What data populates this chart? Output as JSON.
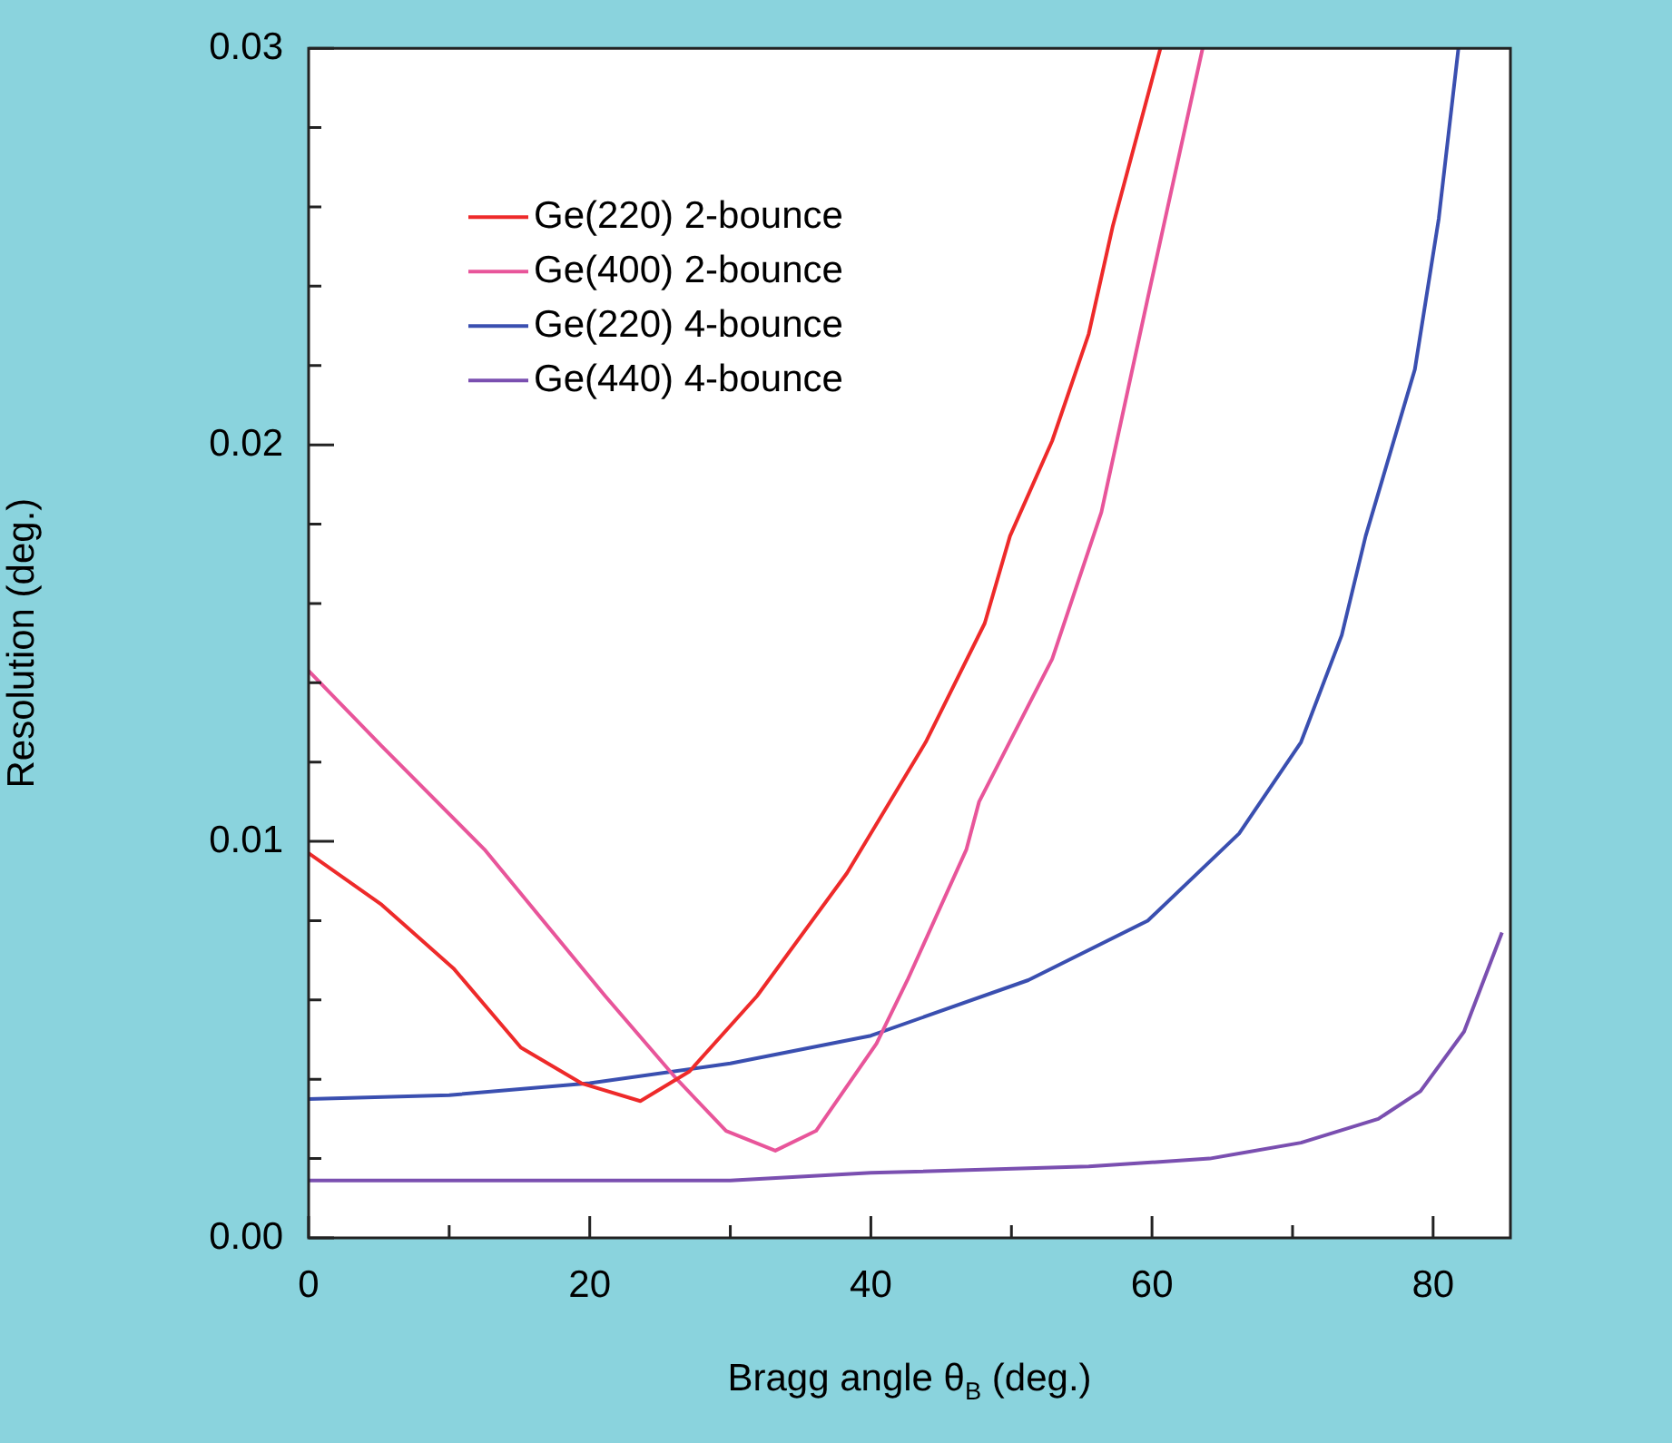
{
  "chart_data": {
    "type": "line",
    "xlabel": "Bragg angle θ$_{B}$ (deg.)",
    "ylabel": "Resolution (deg.)",
    "xlim": [
      0,
      85.5
    ],
    "ylim": [
      0,
      0.03
    ],
    "xticks": [
      0,
      {
        "value": 10,
        "label": null
      },
      20,
      {
        "value": 30,
        "label": null
      },
      40,
      {
        "value": 50,
        "label": null
      },
      60,
      {
        "value": 70,
        "label": null
      },
      80
    ],
    "yticks": [
      {
        "value": 0,
        "label": "0.00"
      },
      {
        "value": 0.002,
        "label": null
      },
      {
        "value": 0.004,
        "label": null
      },
      {
        "value": 0.006,
        "label": null
      },
      {
        "value": 0.008,
        "label": null
      },
      0.01,
      {
        "value": 0.012,
        "label": null
      },
      {
        "value": 0.014,
        "label": null
      },
      {
        "value": 0.016,
        "label": null
      },
      {
        "value": 0.018,
        "label": null
      },
      0.02,
      {
        "value": 0.022,
        "label": null
      },
      {
        "value": 0.024,
        "label": null
      },
      {
        "value": 0.026,
        "label": null
      },
      {
        "value": 0.028,
        "label": null
      },
      0.03
    ],
    "legend": "top left",
    "marker": "none",
    "line_style": "solid",
    "series": [
      {
        "name": "Ge(220) 2-bounce",
        "color": "#ee2a2a",
        "x": [
          0,
          5.2,
          10.3,
          15.1,
          19.4,
          23.6,
          27.1,
          31.9,
          38.3,
          43.9,
          48.1,
          49.9,
          52.9,
          55.5,
          57.2,
          60.6
        ],
        "values": [
          0.0097,
          0.0084,
          0.0068,
          0.0048,
          0.0039,
          0.00345,
          0.0042,
          0.0061,
          0.0092,
          0.0125,
          0.0155,
          0.0177,
          0.0201,
          0.0228,
          0.0255,
          0.03
        ]
      },
      {
        "name": "Ge(400) 2-bounce",
        "color": "#e8559a",
        "x": [
          0,
          5.2,
          12.5,
          21.1,
          26.2,
          29.7,
          33.2,
          36.1,
          40.4,
          42.6,
          46.8,
          47.7,
          52.9,
          56.4,
          59.7,
          63.6
        ],
        "values": [
          0.0143,
          0.0124,
          0.0098,
          0.0061,
          0.004,
          0.0027,
          0.0022,
          0.0027,
          0.0049,
          0.0065,
          0.0098,
          0.011,
          0.0146,
          0.0183,
          0.0237,
          0.03
        ]
      },
      {
        "name": "Ge(220) 4-bounce",
        "color": "#3a4fb0",
        "x": [
          0,
          10,
          20,
          30,
          40,
          51.2,
          59.7,
          66.2,
          70.6,
          73.5,
          75.2,
          78.7,
          80.4,
          81.8
        ],
        "values": [
          0.0035,
          0.0036,
          0.0039,
          0.0044,
          0.0051,
          0.0065,
          0.008,
          0.0102,
          0.0125,
          0.0152,
          0.0177,
          0.0219,
          0.0257,
          0.03
        ]
      },
      {
        "name": "Ge(440) 4-bounce",
        "color": "#7a4fb0",
        "x": [
          0,
          30,
          40,
          55.5,
          64.1,
          70.6,
          76.1,
          79.1,
          82.2,
          84.9
        ],
        "values": [
          0.00145,
          0.00145,
          0.00164,
          0.0018,
          0.002,
          0.0024,
          0.003,
          0.0037,
          0.0052,
          0.0077
        ]
      }
    ]
  }
}
